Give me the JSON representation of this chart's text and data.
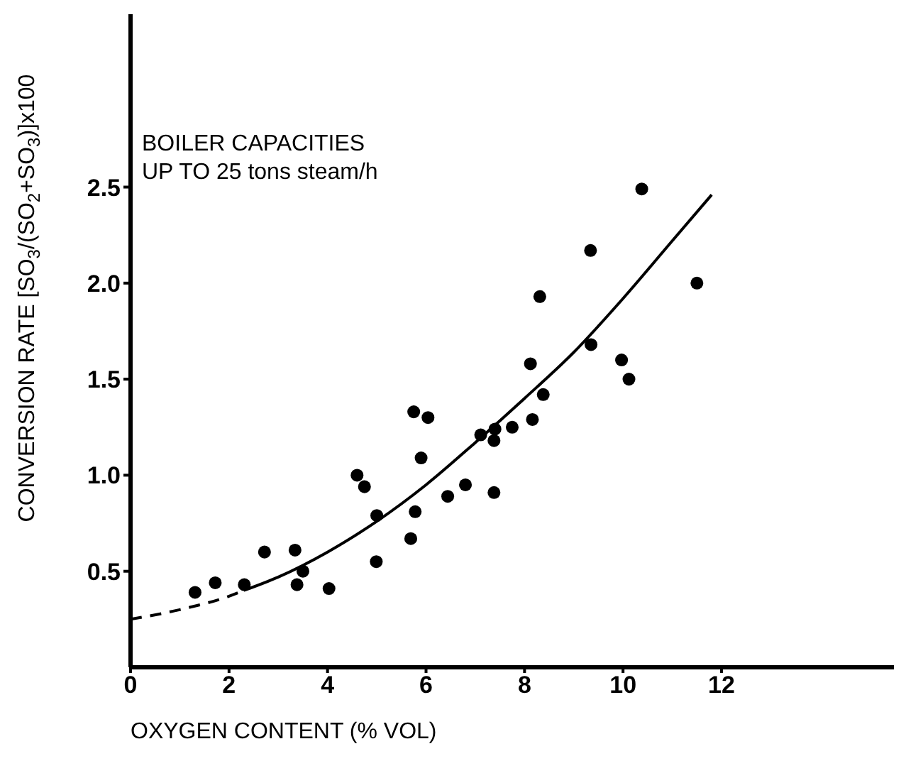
{
  "chart_data": {
    "type": "scatter",
    "xlabel": "OXYGEN CONTENT (% VOL)",
    "ylabel": "CONVERSION RATE [SO$_{3}$/(SO$_{2}$+SO$_{3}$)]x100",
    "annotations": [
      "BOILER CAPACITIES\nUP TO 25 tons steam/h"
    ],
    "xlim": [
      0,
      15.5
    ],
    "ylim": [
      0,
      3.4
    ],
    "xticks": [
      0,
      2,
      4,
      6,
      8,
      10,
      12
    ],
    "yticks": [
      {
        "value": 0.5,
        "label": "0.5"
      },
      {
        "value": 1.0,
        "label": "1.0"
      },
      {
        "value": 1.5,
        "label": "1.5"
      },
      {
        "value": 2.0,
        "label": "2.0"
      },
      {
        "value": 2.5,
        "label": "2.5"
      }
    ],
    "grid": false,
    "marker": "circle",
    "series": [
      {
        "color": "#000000",
        "x": [
          1.31,
          1.72,
          2.31,
          2.72,
          3.34,
          3.5,
          3.38,
          4.03,
          4.6,
          4.75,
          5.0,
          4.99,
          5.78,
          5.69,
          5.9,
          5.75,
          6.04,
          6.44,
          6.8,
          7.38,
          7.11,
          7.38,
          7.4,
          7.75,
          8.16,
          8.38,
          8.12,
          8.31,
          9.35,
          9.97,
          10.12,
          10.38,
          9.34,
          11.5
        ],
        "values": [
          0.39,
          0.44,
          0.43,
          0.6,
          0.61,
          0.5,
          0.43,
          0.41,
          1.0,
          0.94,
          0.79,
          0.55,
          0.81,
          0.67,
          1.09,
          1.33,
          1.3,
          0.89,
          0.95,
          0.91,
          1.21,
          1.18,
          1.24,
          1.25,
          1.29,
          1.42,
          1.58,
          1.93,
          1.68,
          1.6,
          1.5,
          2.49,
          2.17,
          2.0
        ]
      },
      {
        "type": "line",
        "color": "#000000",
        "line_style": "dashed",
        "marker": "none",
        "x": [
          0,
          1,
          2,
          2.3
        ],
        "values": [
          0.25,
          0.3,
          0.37,
          0.4
        ]
      },
      {
        "type": "line",
        "color": "#000000",
        "line_style": "solid",
        "marker": "none",
        "x": [
          2.3,
          3,
          4,
          5,
          6,
          7,
          8,
          9,
          10,
          11,
          11.8
        ],
        "values": [
          0.4,
          0.47,
          0.6,
          0.76,
          0.95,
          1.17,
          1.4,
          1.64,
          1.92,
          2.22,
          2.46
        ]
      }
    ]
  }
}
